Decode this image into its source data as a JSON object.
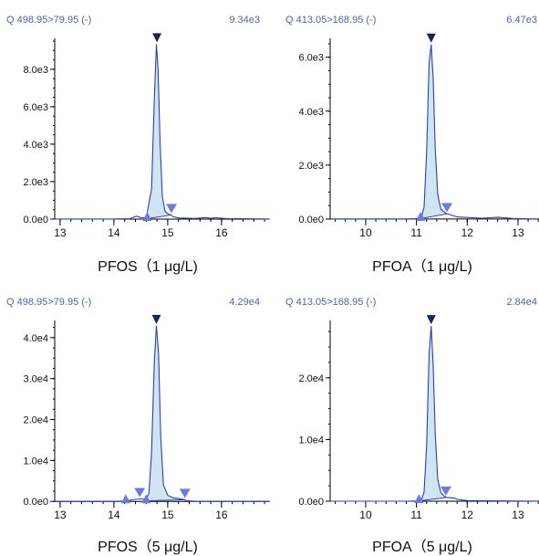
{
  "colors": {
    "header": "#4f63a8",
    "axis": "#000000",
    "trace": "#2a3fb8",
    "fill": "#cfe6f2",
    "apex_marker": "#16245e",
    "boundary_marker": "#6a7ae0"
  },
  "chart_data": [
    {
      "type": "line",
      "subtype": "chromatogram",
      "channel": "Q 498.95>79.95 (-)",
      "max_intensity": "9.34e3",
      "caption": "PFOS（1 μg/L)",
      "xlim": [
        12.9,
        16.9
      ],
      "ylim": [
        -100,
        9650
      ],
      "x_ticks": [
        13,
        14,
        15,
        16
      ],
      "x_minor_step": 0.2,
      "y_ticks": [
        0,
        2000,
        4000,
        6000,
        8000
      ],
      "y_tick_labels": [
        "0.0e0",
        "2.0e3",
        "4.0e3",
        "6.0e3",
        "8.0e3"
      ],
      "y_minor_step": 500,
      "series": [
        {
          "x": [
            12.9,
            13.5,
            14.0,
            14.3,
            14.42,
            14.5,
            14.6,
            14.7,
            14.75,
            14.79,
            14.82,
            14.86,
            14.9,
            14.95,
            15.0,
            15.05,
            15.1,
            15.2,
            15.5,
            15.7,
            15.8,
            15.9,
            16.1,
            16.3,
            16.6,
            16.9
          ],
          "y": [
            0,
            0,
            0,
            20,
            160,
            80,
            60,
            1600,
            6400,
            9340,
            8000,
            4000,
            1200,
            420,
            280,
            230,
            130,
            60,
            30,
            80,
            40,
            70,
            20,
            20,
            10,
            0
          ]
        }
      ],
      "peaks": [
        {
          "apex_x": 14.8,
          "apex_y": 9340,
          "start_x": 14.62,
          "end_x": 15.07,
          "start_y": 20,
          "end_y": 220
        }
      ]
    },
    {
      "type": "line",
      "subtype": "chromatogram",
      "channel": "Q 413.05>168.95 (-)",
      "max_intensity": "6.47e3",
      "caption": "PFOA（1 μg/L)",
      "xlim": [
        9.3,
        13.45
      ],
      "ylim": [
        -70,
        6700
      ],
      "x_ticks": [
        10,
        11,
        12,
        13
      ],
      "x_minor_step": 0.2,
      "y_ticks": [
        0,
        2000,
        4000,
        6000
      ],
      "y_tick_labels": [
        "0.0e0",
        "2.0e3",
        "4.0e3",
        "6.0e3"
      ],
      "y_minor_step": 500,
      "series": [
        {
          "x": [
            9.3,
            10.0,
            10.8,
            11.0,
            11.1,
            11.15,
            11.2,
            11.25,
            11.29,
            11.33,
            11.37,
            11.42,
            11.48,
            11.55,
            11.6,
            11.8,
            12.0,
            12.3,
            12.6,
            12.9,
            13.1,
            13.45
          ],
          "y": [
            0,
            0,
            0,
            10,
            60,
            450,
            2500,
            5800,
            6470,
            5200,
            2600,
            900,
            380,
            250,
            200,
            80,
            60,
            30,
            70,
            20,
            10,
            0
          ]
        }
      ],
      "peaks": [
        {
          "apex_x": 11.29,
          "apex_y": 6470,
          "start_x": 11.08,
          "end_x": 11.6,
          "start_y": 20,
          "end_y": 190
        }
      ]
    },
    {
      "type": "line",
      "subtype": "chromatogram",
      "channel": "Q 498.95>79.95 (-)",
      "max_intensity": "4.29e4",
      "caption": "PFOS（5 μg/L)",
      "xlim": [
        12.9,
        16.9
      ],
      "ylim": [
        -400,
        44200
      ],
      "x_ticks": [
        13,
        14,
        15,
        16
      ],
      "x_minor_step": 0.2,
      "y_ticks": [
        0,
        10000,
        20000,
        30000,
        40000
      ],
      "y_tick_labels": [
        "0.0e0",
        "1.0e4",
        "2.0e4",
        "3.0e4",
        "4.0e4"
      ],
      "y_minor_step": 2500,
      "series": [
        {
          "x": [
            12.9,
            13.5,
            14.0,
            14.2,
            14.3,
            14.4,
            14.5,
            14.6,
            14.65,
            14.7,
            14.75,
            14.79,
            14.83,
            14.87,
            14.92,
            15.0,
            15.1,
            15.2,
            15.3,
            15.35,
            15.5,
            16.0,
            16.9
          ],
          "y": [
            0,
            0,
            0,
            100,
            300,
            500,
            600,
            500,
            2000,
            12000,
            34000,
            42900,
            36000,
            16000,
            4000,
            1500,
            900,
            700,
            450,
            150,
            60,
            20,
            0
          ]
        }
      ],
      "peaks": [
        {
          "apex_x": 14.79,
          "apex_y": 42900,
          "start_x": 14.6,
          "end_x": 15.32,
          "start_y": 150,
          "end_y": 400
        }
      ],
      "extra_markers": [
        {
          "kind": "boundary",
          "x": 14.48,
          "y": 600
        },
        {
          "kind": "start",
          "x": 14.22,
          "y": 100
        }
      ]
    },
    {
      "type": "line",
      "subtype": "chromatogram",
      "channel": "Q 413.05>168.95 (-)",
      "max_intensity": "2.84e4",
      "caption": "PFOA（5 μg/L)",
      "xlim": [
        9.3,
        13.45
      ],
      "ylim": [
        -300,
        29300
      ],
      "x_ticks": [
        10,
        11,
        12,
        13
      ],
      "x_minor_step": 0.2,
      "y_ticks": [
        0,
        10000,
        20000
      ],
      "y_tick_labels": [
        "0.0e0",
        "1.0e4",
        "2.0e4"
      ],
      "y_minor_step": 2500,
      "series": [
        {
          "x": [
            9.3,
            10.0,
            10.8,
            11.0,
            11.1,
            11.15,
            11.2,
            11.25,
            11.29,
            11.33,
            11.37,
            11.42,
            11.48,
            11.55,
            11.6,
            11.75,
            11.8,
            12.0,
            12.5,
            13.0,
            13.45
          ],
          "y": [
            0,
            0,
            0,
            40,
            250,
            1500,
            9000,
            24000,
            28400,
            22000,
            11000,
            3500,
            1400,
            800,
            600,
            500,
            300,
            100,
            50,
            20,
            0
          ]
        }
      ],
      "peaks": [
        {
          "apex_x": 11.29,
          "apex_y": 28400,
          "start_x": 11.05,
          "end_x": 11.58,
          "start_y": 40,
          "end_y": 600
        }
      ]
    }
  ]
}
